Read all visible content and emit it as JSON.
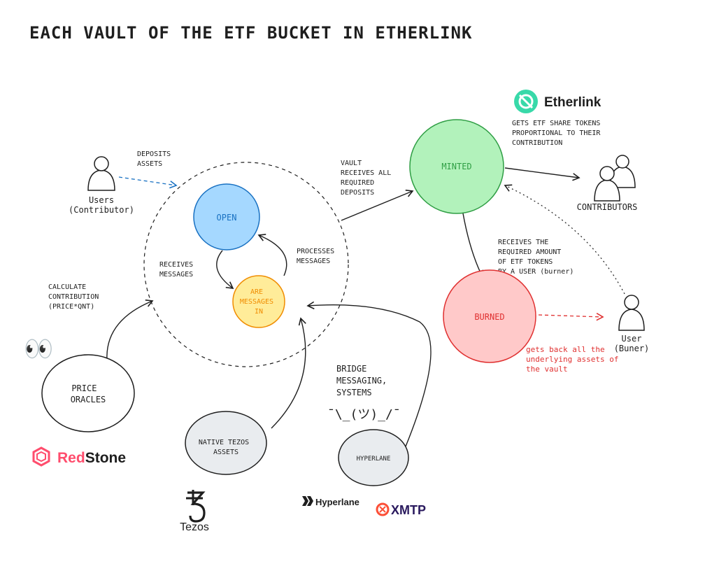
{
  "title": "EACH VAULT OF THE ETF BUCKET IN ETHERLINK",
  "actors": {
    "users": {
      "name": "Users",
      "role": "(Contributor)"
    },
    "contributors": {
      "name": "CONTRIBUTORS"
    },
    "user_burner": {
      "name": "User",
      "role": "(Buner)"
    }
  },
  "states": {
    "open": "OPEN",
    "messages_in": [
      "ARE",
      "MESSAGES",
      "IN"
    ],
    "minted": "MINTED",
    "burned": "BURNED"
  },
  "sources": {
    "price_oracles": [
      "PRICE",
      "ORACLES"
    ],
    "native_tezos": [
      "NATIVE TEZOS",
      "ASSETS"
    ],
    "hyperlane": "HYPERLANE"
  },
  "labels": {
    "deposits": [
      "DEPOSITS",
      "ASSETS"
    ],
    "receives_messages": [
      "RECEIVES",
      "MESSAGES"
    ],
    "processes_messages": [
      "PROCESSES",
      "MESSAGES"
    ],
    "vault_receives": [
      "VAULT",
      "RECEIVES ALL",
      "REQUIRED",
      "DEPOSITS"
    ],
    "gets_etf": [
      "GETS ETF SHARE TOKENS",
      "PROPORTIONAL TO THEIR",
      "CONTRIBUTION"
    ],
    "receives_required": [
      "RECEIVES THE",
      "REQUIRED AMOUNT",
      "OF ETF TOKENS",
      "BY A USER (burner)"
    ],
    "calculate": [
      "CALCULATE",
      "CONTRIBUTION",
      "(PRICE*QNT)"
    ],
    "bridge": [
      "BRIDGE",
      "MESSAGING,",
      "SYSTEMS"
    ],
    "shrug": "¯\\_(ツ)_/¯",
    "gets_back": [
      "gets back all the",
      "underlying assets of",
      "the vault"
    ]
  },
  "logos": {
    "etherlink": "Etherlink",
    "redstone_red": "Red",
    "redstone_stone": "Stone",
    "tezos": "Tezos",
    "hyperlane": "Hyperlane",
    "xmtp": "XMTP"
  },
  "emoji": "👀",
  "colors": {
    "open_fill": "#a5d8ff",
    "open_stroke": "#1971c2",
    "messages_fill": "#ffec99",
    "messages_stroke": "#f08c00",
    "minted_fill": "#b2f2bb",
    "minted_stroke": "#2f9e44",
    "burned_fill": "#ffc9c9",
    "burned_stroke": "#e03131",
    "grey_fill": "#e9ecef",
    "ink": "#1e1e1e",
    "blue_arrow": "#1971c2",
    "red_accent": "#e03131",
    "redstone": "#ff4d6d",
    "xmtp": "#fc4f37",
    "etherlink": "#38d9a9"
  }
}
